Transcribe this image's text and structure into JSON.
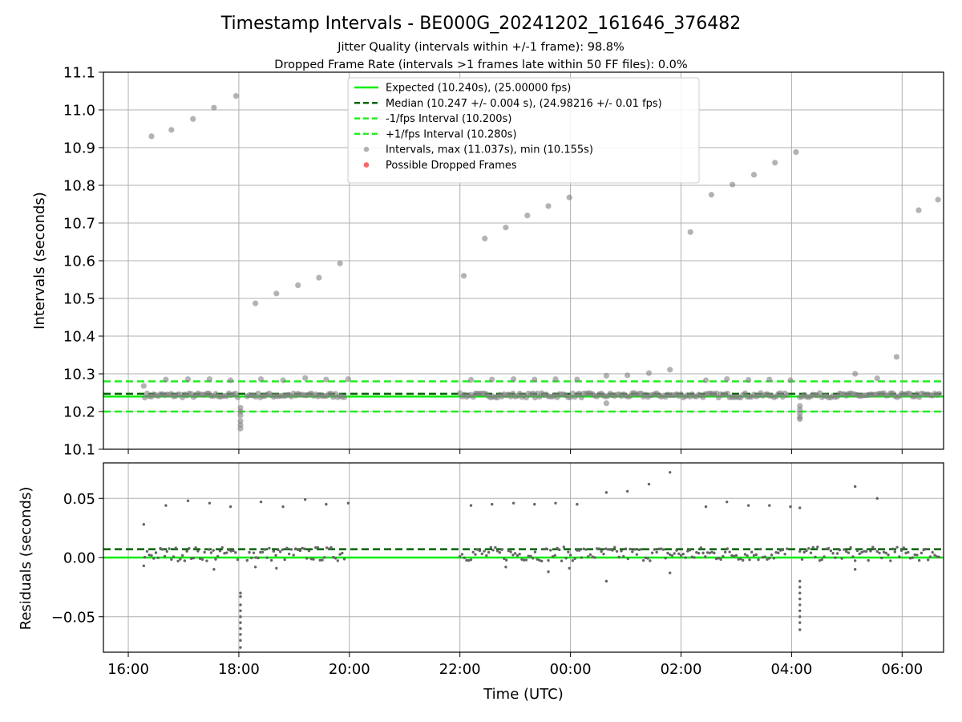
{
  "chart_data": {
    "type": "scatter",
    "title": "Timestamp Intervals - BE000G_20241202_161646_376482",
    "subtitles": [
      "Jitter Quality (intervals within +/-1 frame): 98.8%",
      "Dropped Frame Rate (intervals >1 frames late within 50 FF files): 0.0%"
    ],
    "xlabel": "Time (UTC)",
    "x_unit": "hours since 16:00 UTC",
    "xlim": [
      -0.45,
      14.75
    ],
    "xticks": [
      {
        "v": 0,
        "label": "16:00"
      },
      {
        "v": 2,
        "label": "18:00"
      },
      {
        "v": 4,
        "label": "20:00"
      },
      {
        "v": 6,
        "label": "22:00"
      },
      {
        "v": 8,
        "label": "00:00"
      },
      {
        "v": 10,
        "label": "02:00"
      },
      {
        "v": 12,
        "label": "04:00"
      },
      {
        "v": 14,
        "label": "06:00"
      }
    ],
    "colors": {
      "expected": "#00ee00",
      "median": "#006400",
      "fps_band": "#22ee22",
      "intervals": "#808080",
      "residuals": "#666666",
      "dropped": "#ff3333",
      "grid": "#b0b0b0"
    },
    "legend": {
      "placement": "upper center",
      "entries": [
        {
          "kind": "line-solid",
          "label": "Expected (10.240s), (25.00000 fps)"
        },
        {
          "kind": "line-dash-dark",
          "label": "Median (10.247 +/- 0.004 s), (24.98216 +/- 0.01 fps)"
        },
        {
          "kind": "line-dash",
          "label": "-1/fps Interval (10.200s)"
        },
        {
          "kind": "line-dash",
          "label": "+1/fps Interval (10.280s)"
        },
        {
          "kind": "dot-gray",
          "label": "Intervals, max (11.037s), min (10.155s)"
        },
        {
          "kind": "dot-red",
          "label": "Possible Dropped Frames"
        }
      ]
    },
    "top_panel": {
      "ylabel": "Intervals (seconds)",
      "ylim": [
        10.1,
        11.1
      ],
      "yticks": [
        "10.1",
        "10.2",
        "10.3",
        "10.4",
        "10.5",
        "10.6",
        "10.7",
        "10.8",
        "10.9",
        "11.0",
        "11.1"
      ],
      "expected": 10.24,
      "median": 10.247,
      "minus_fps": 10.2,
      "plus_fps": 10.28,
      "baseline_band": {
        "low": 10.237,
        "high": 10.249
      },
      "baseline_segments": [
        [
          0.3,
          2.0
        ],
        [
          2.15,
          3.95
        ],
        [
          6.0,
          11.95
        ],
        [
          12.15,
          14.7
        ]
      ],
      "dip_clusters": [
        {
          "x": 2.03,
          "values": [
            10.155,
            10.165,
            10.175,
            10.19,
            10.2,
            10.21
          ]
        },
        {
          "x": 12.15,
          "values": [
            10.18,
            10.185,
            10.195,
            10.205,
            10.215
          ]
        }
      ],
      "outliers": [
        {
          "x": 0.28,
          "y": 10.268
        },
        {
          "x": 0.42,
          "y": 10.93
        },
        {
          "x": 0.78,
          "y": 10.947
        },
        {
          "x": 1.17,
          "y": 10.976
        },
        {
          "x": 1.55,
          "y": 11.006
        },
        {
          "x": 1.95,
          "y": 11.037
        },
        {
          "x": 2.3,
          "y": 10.487
        },
        {
          "x": 2.68,
          "y": 10.513
        },
        {
          "x": 3.07,
          "y": 10.535
        },
        {
          "x": 3.45,
          "y": 10.555
        },
        {
          "x": 3.83,
          "y": 10.593
        },
        {
          "x": 6.07,
          "y": 10.56
        },
        {
          "x": 6.45,
          "y": 10.659
        },
        {
          "x": 6.83,
          "y": 10.688
        },
        {
          "x": 7.22,
          "y": 10.72
        },
        {
          "x": 7.6,
          "y": 10.745
        },
        {
          "x": 7.98,
          "y": 10.768
        },
        {
          "x": 10.17,
          "y": 10.676
        },
        {
          "x": 10.55,
          "y": 10.775
        },
        {
          "x": 10.93,
          "y": 10.802
        },
        {
          "x": 11.32,
          "y": 10.828
        },
        {
          "x": 11.7,
          "y": 10.86
        },
        {
          "x": 12.08,
          "y": 10.888
        },
        {
          "x": 14.3,
          "y": 10.734
        },
        {
          "x": 14.65,
          "y": 10.762
        },
        {
          "x": 13.9,
          "y": 10.345
        },
        {
          "x": 13.55,
          "y": 10.288
        },
        {
          "x": 13.15,
          "y": 10.3
        },
        {
          "x": 9.8,
          "y": 10.311
        },
        {
          "x": 9.42,
          "y": 10.302
        },
        {
          "x": 9.03,
          "y": 10.296
        },
        {
          "x": 8.65,
          "y": 10.295
        },
        {
          "x": 8.65,
          "y": 10.222
        },
        {
          "x": 0.68,
          "y": 10.285
        },
        {
          "x": 1.08,
          "y": 10.286
        },
        {
          "x": 1.47,
          "y": 10.286
        },
        {
          "x": 1.85,
          "y": 10.283
        },
        {
          "x": 2.4,
          "y": 10.286
        },
        {
          "x": 2.8,
          "y": 10.283
        },
        {
          "x": 3.2,
          "y": 10.289
        },
        {
          "x": 3.58,
          "y": 10.285
        },
        {
          "x": 3.98,
          "y": 10.286
        },
        {
          "x": 6.2,
          "y": 10.284
        },
        {
          "x": 6.58,
          "y": 10.285
        },
        {
          "x": 6.97,
          "y": 10.286
        },
        {
          "x": 7.35,
          "y": 10.285
        },
        {
          "x": 7.73,
          "y": 10.286
        },
        {
          "x": 8.12,
          "y": 10.285
        },
        {
          "x": 10.45,
          "y": 10.283
        },
        {
          "x": 10.83,
          "y": 10.286
        },
        {
          "x": 11.22,
          "y": 10.284
        },
        {
          "x": 11.6,
          "y": 10.285
        },
        {
          "x": 11.98,
          "y": 10.283
        }
      ]
    },
    "bottom_panel": {
      "ylabel": "Residuals (seconds)",
      "ylim": [
        -0.08,
        0.08
      ],
      "yticks": [
        {
          "v": -0.05,
          "label": "−0.05"
        },
        {
          "v": 0,
          "label": "0.00"
        },
        {
          "v": 0.05,
          "label": "0.05"
        }
      ],
      "expected": 0.0,
      "median": 0.007,
      "baseline_band": {
        "low": -0.003,
        "high": 0.009
      },
      "baseline_segments": [
        [
          0.3,
          2.0
        ],
        [
          2.15,
          3.95
        ],
        [
          6.0,
          11.95
        ],
        [
          12.15,
          14.7
        ]
      ],
      "dip_clusters": [
        {
          "x": 2.03,
          "values": [
            -0.03,
            -0.033,
            -0.04,
            -0.045,
            -0.05,
            -0.055,
            -0.06,
            -0.065,
            -0.07,
            -0.076
          ]
        },
        {
          "x": 12.15,
          "values": [
            -0.02,
            -0.025,
            -0.03,
            -0.035,
            -0.04,
            -0.045,
            -0.05,
            -0.055,
            -0.061
          ]
        }
      ],
      "outliers": [
        {
          "x": 0.28,
          "y": 0.028
        },
        {
          "x": 0.68,
          "y": 0.044
        },
        {
          "x": 1.08,
          "y": 0.048
        },
        {
          "x": 1.47,
          "y": 0.046
        },
        {
          "x": 1.85,
          "y": 0.043
        },
        {
          "x": 2.4,
          "y": 0.047
        },
        {
          "x": 2.8,
          "y": 0.043
        },
        {
          "x": 3.2,
          "y": 0.049
        },
        {
          "x": 3.58,
          "y": 0.045
        },
        {
          "x": 3.98,
          "y": 0.046
        },
        {
          "x": 6.2,
          "y": 0.044
        },
        {
          "x": 6.58,
          "y": 0.045
        },
        {
          "x": 6.97,
          "y": 0.046
        },
        {
          "x": 7.35,
          "y": 0.045
        },
        {
          "x": 7.73,
          "y": 0.046
        },
        {
          "x": 8.12,
          "y": 0.045
        },
        {
          "x": 8.65,
          "y": 0.055
        },
        {
          "x": 9.03,
          "y": 0.056
        },
        {
          "x": 9.42,
          "y": 0.062
        },
        {
          "x": 9.8,
          "y": 0.072
        },
        {
          "x": 10.45,
          "y": 0.043
        },
        {
          "x": 10.83,
          "y": 0.047
        },
        {
          "x": 11.22,
          "y": 0.044
        },
        {
          "x": 11.6,
          "y": 0.044
        },
        {
          "x": 11.98,
          "y": 0.043
        },
        {
          "x": 12.15,
          "y": 0.042
        },
        {
          "x": 13.15,
          "y": 0.06
        },
        {
          "x": 13.55,
          "y": 0.05
        },
        {
          "x": 8.65,
          "y": -0.02
        },
        {
          "x": 9.8,
          "y": -0.013
        },
        {
          "x": 0.28,
          "y": -0.007
        },
        {
          "x": 1.55,
          "y": -0.01
        },
        {
          "x": 2.3,
          "y": -0.008
        },
        {
          "x": 2.68,
          "y": -0.009
        },
        {
          "x": 7.6,
          "y": -0.012
        },
        {
          "x": 7.98,
          "y": -0.009
        },
        {
          "x": 6.83,
          "y": -0.008
        },
        {
          "x": 13.15,
          "y": -0.01
        }
      ]
    }
  }
}
